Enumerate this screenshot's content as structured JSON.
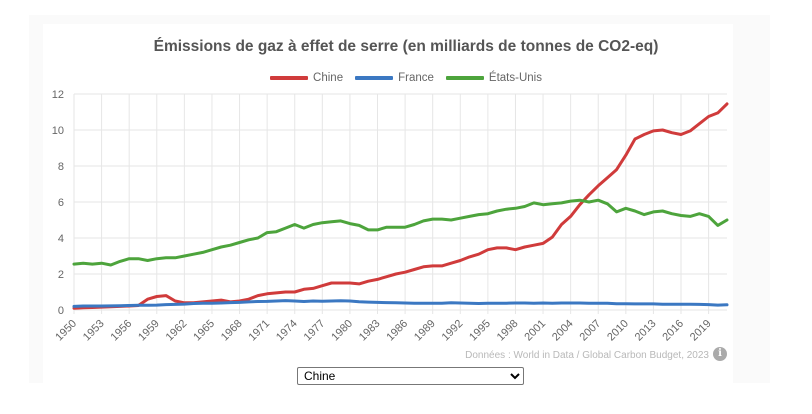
{
  "source_text": "Données : World in Data / Global Carbon Budget, 2023",
  "selector": {
    "selected": "Chine",
    "options": [
      "Chine"
    ]
  },
  "chart_data": {
    "type": "line",
    "title": "Émissions de gaz à effet de serre (en milliards de tonnes de CO2-eq)",
    "xlabel": "",
    "ylabel": "",
    "ylim": [
      0,
      12
    ],
    "yticks": [
      0,
      2,
      4,
      6,
      8,
      10,
      12
    ],
    "xticks": [
      "1950",
      "1953",
      "1956",
      "1959",
      "1962",
      "1965",
      "1968",
      "1971",
      "1974",
      "1977",
      "1980",
      "1983",
      "1986",
      "1989",
      "1992",
      "1995",
      "1998",
      "2001",
      "2004",
      "2007",
      "2010",
      "2013",
      "2016",
      "2019"
    ],
    "grid": true,
    "legend_position": "top",
    "x": [
      1950,
      1951,
      1952,
      1953,
      1954,
      1955,
      1956,
      1957,
      1958,
      1959,
      1960,
      1961,
      1962,
      1963,
      1964,
      1965,
      1966,
      1967,
      1968,
      1969,
      1970,
      1971,
      1972,
      1973,
      1974,
      1975,
      1976,
      1977,
      1978,
      1979,
      1980,
      1981,
      1982,
      1983,
      1984,
      1985,
      1986,
      1987,
      1988,
      1989,
      1990,
      1991,
      1992,
      1993,
      1994,
      1995,
      1996,
      1997,
      1998,
      1999,
      2000,
      2001,
      2002,
      2003,
      2004,
      2005,
      2006,
      2007,
      2008,
      2009,
      2010,
      2011,
      2012,
      2013,
      2014,
      2015,
      2016,
      2017,
      2018,
      2019,
      2020,
      2021
    ],
    "series": [
      {
        "name": "Chine",
        "color": "#d03b3b",
        "values": [
          0.1,
          0.12,
          0.14,
          0.16,
          0.18,
          0.2,
          0.22,
          0.25,
          0.6,
          0.75,
          0.8,
          0.5,
          0.4,
          0.4,
          0.45,
          0.5,
          0.55,
          0.45,
          0.5,
          0.6,
          0.8,
          0.9,
          0.95,
          1.0,
          1.0,
          1.15,
          1.2,
          1.35,
          1.5,
          1.5,
          1.5,
          1.45,
          1.6,
          1.7,
          1.85,
          2.0,
          2.1,
          2.25,
          2.4,
          2.45,
          2.45,
          2.6,
          2.75,
          2.95,
          3.1,
          3.35,
          3.45,
          3.45,
          3.35,
          3.5,
          3.6,
          3.7,
          4.05,
          4.75,
          5.2,
          5.85,
          6.4,
          6.9,
          7.35,
          7.8,
          8.6,
          9.5,
          9.75,
          9.95,
          10.0,
          9.85,
          9.75,
          9.95,
          10.35,
          10.75,
          10.95,
          11.45
        ]
      },
      {
        "name": "France",
        "color": "#3b78c2",
        "values": [
          0.2,
          0.22,
          0.22,
          0.22,
          0.23,
          0.24,
          0.25,
          0.26,
          0.26,
          0.27,
          0.3,
          0.31,
          0.33,
          0.36,
          0.37,
          0.38,
          0.39,
          0.41,
          0.42,
          0.45,
          0.47,
          0.48,
          0.5,
          0.52,
          0.5,
          0.47,
          0.5,
          0.49,
          0.5,
          0.51,
          0.5,
          0.46,
          0.44,
          0.42,
          0.41,
          0.4,
          0.39,
          0.38,
          0.37,
          0.38,
          0.38,
          0.4,
          0.39,
          0.37,
          0.36,
          0.37,
          0.38,
          0.38,
          0.39,
          0.39,
          0.38,
          0.39,
          0.38,
          0.39,
          0.39,
          0.39,
          0.38,
          0.37,
          0.37,
          0.35,
          0.35,
          0.34,
          0.34,
          0.34,
          0.32,
          0.32,
          0.32,
          0.32,
          0.31,
          0.3,
          0.27,
          0.29
        ]
      },
      {
        "name": "États-Unis",
        "color": "#4da43c",
        "values": [
          2.55,
          2.6,
          2.55,
          2.6,
          2.5,
          2.7,
          2.85,
          2.85,
          2.75,
          2.85,
          2.9,
          2.9,
          3.0,
          3.1,
          3.2,
          3.35,
          3.5,
          3.6,
          3.75,
          3.9,
          4.0,
          4.3,
          4.35,
          4.55,
          4.75,
          4.55,
          4.75,
          4.85,
          4.9,
          4.95,
          4.8,
          4.7,
          4.45,
          4.45,
          4.6,
          4.6,
          4.6,
          4.75,
          4.95,
          5.05,
          5.05,
          5.0,
          5.1,
          5.2,
          5.3,
          5.35,
          5.5,
          5.6,
          5.65,
          5.75,
          5.95,
          5.85,
          5.9,
          5.95,
          6.05,
          6.1,
          6.0,
          6.1,
          5.9,
          5.45,
          5.65,
          5.5,
          5.3,
          5.45,
          5.5,
          5.35,
          5.25,
          5.2,
          5.35,
          5.2,
          4.7,
          5.0
        ]
      }
    ]
  }
}
